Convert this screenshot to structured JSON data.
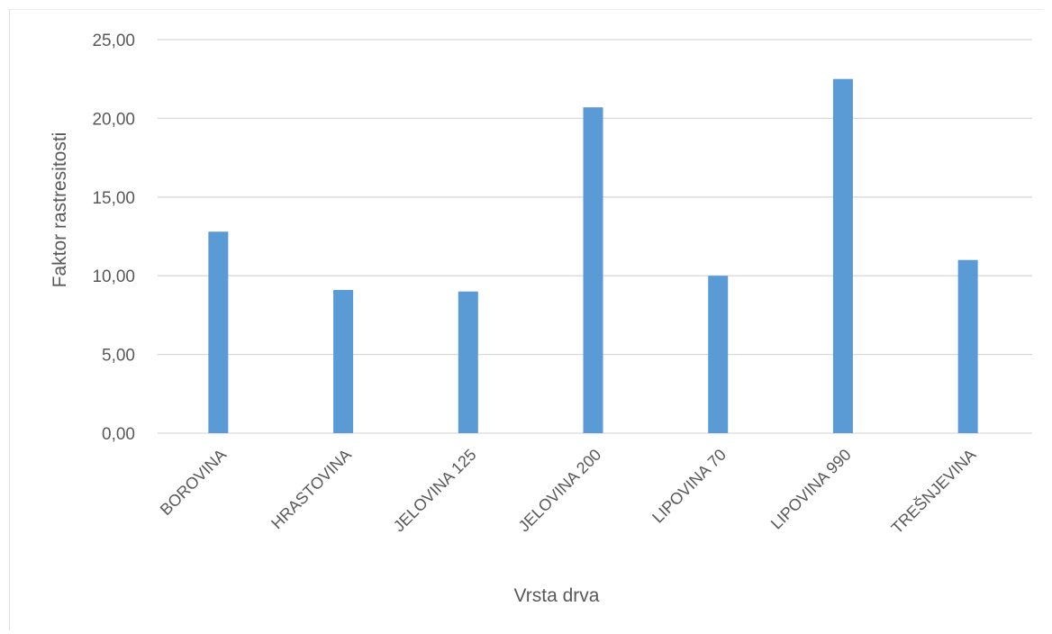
{
  "chart_data": {
    "type": "bar",
    "categories": [
      "BOROVINA",
      "HRASTOVINA",
      "JELOVINA 125",
      "JELOVINA 200",
      "LIPOVINA 70",
      "LIPOVINA 990",
      "TREŠNJEVINA"
    ],
    "values": [
      12.8,
      9.1,
      9.0,
      20.7,
      10.0,
      22.5,
      11.0
    ],
    "ylabel": "Faktor rastresitosti",
    "xlabel": "Vrsta drva",
    "ylim": [
      0,
      25
    ],
    "yticks": [
      "0,00",
      "5,00",
      "10,00",
      "15,00",
      "20,00",
      "25,00"
    ],
    "grid": true,
    "colors": {
      "bar": "#5b9bd5",
      "grid": "#d9d9d9",
      "text": "#595959"
    }
  }
}
